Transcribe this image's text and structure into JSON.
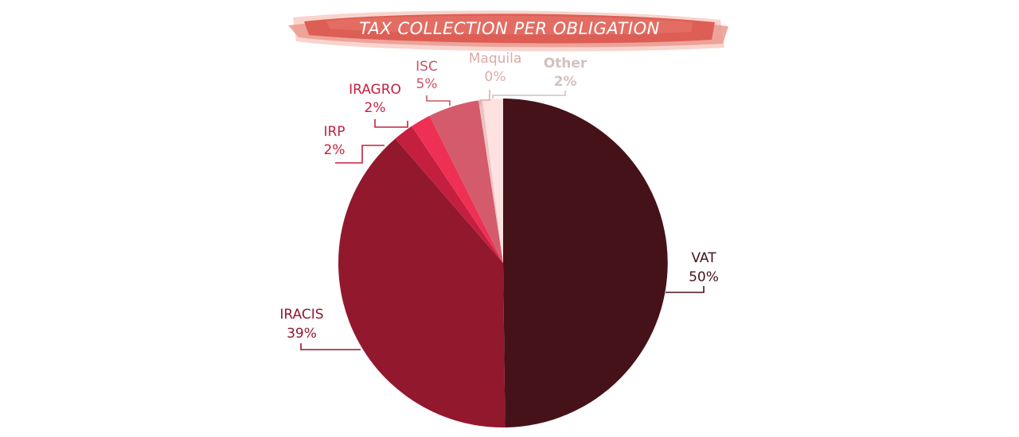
{
  "chart_data": {
    "type": "pie",
    "title": "TAX COLLECTION PER OBLIGATION",
    "slices": [
      {
        "name": "VAT",
        "value": 50,
        "label": "50%",
        "color": "#46121a",
        "text_color": "#46121a"
      },
      {
        "name": "IRACIS",
        "value": 39,
        "label": "39%",
        "color": "#92182d",
        "text_color": "#92182d"
      },
      {
        "name": "IRP",
        "value": 2,
        "label": "2%",
        "color": "#c51f3f",
        "text_color": "#c51f3f"
      },
      {
        "name": "IRAGRO",
        "value": 2,
        "label": "2%",
        "color": "#ee3054",
        "text_color": "#c51f3f"
      },
      {
        "name": "ISC",
        "value": 5,
        "label": "5%",
        "color": "#d45b6b",
        "text_color": "#c95565"
      },
      {
        "name": "Maquila",
        "value": 0,
        "label": "0%",
        "color": "#ecc3c3",
        "text_color": "#dcaaa6"
      },
      {
        "name": "Other",
        "value": 2,
        "label": "2%",
        "color": "#fde2df",
        "text_color": "#d3c1bf"
      }
    ]
  }
}
